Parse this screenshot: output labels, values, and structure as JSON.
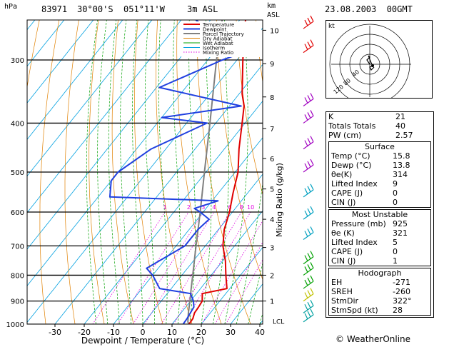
{
  "header": {
    "station": "83971",
    "coords": "30°00'S  051°11'W",
    "elev": "3m ASL",
    "datetime": "23.08.2003  00GMT",
    "hpa_unit": "hPa",
    "km_unit": "km",
    "asl_unit": "ASL"
  },
  "chart_data": {
    "type": "skew-t",
    "xlabel": "Dewpoint / Temperature (°C)",
    "ylabel_left": "hPa",
    "ylabel_right": "Mixing Ratio (g/kg)",
    "pressure_ticks": [
      300,
      400,
      500,
      600,
      700,
      800,
      900,
      1000
    ],
    "temp_ticks": [
      -30,
      -20,
      -10,
      0,
      10,
      20,
      30,
      40
    ],
    "height_ticks_km": [
      "1",
      "2",
      "3",
      "4",
      "5",
      "6",
      "7",
      "8",
      "9",
      "10"
    ],
    "lcl_label": "LCL",
    "mixing_ratio_labels": [
      "1",
      "2",
      "3",
      "4",
      "6",
      "8",
      "10",
      "15",
      "20",
      "25"
    ],
    "legend": [
      "Temperature",
      "Dewpoint",
      "Parcel Trajectory",
      "Dry Adiabat",
      "Wet Adiabat",
      "Isotherm",
      "Mixing Ratio"
    ],
    "colors": {
      "temperature": "#e00000",
      "dewpoint": "#2040e0",
      "parcel": "#808080",
      "dry_adiabat": "#e08000",
      "wet_adiabat": "#00a000",
      "isotherm": "#00a0e0",
      "mixing_ratio": "#e000e0"
    },
    "temperature": [
      {
        "p": 1000,
        "t": 15.8
      },
      {
        "p": 975,
        "t": 15.6
      },
      {
        "p": 950,
        "t": 14.6
      },
      {
        "p": 925,
        "t": 14.4
      },
      {
        "p": 900,
        "t": 14.0
      },
      {
        "p": 870,
        "t": 12.0
      },
      {
        "p": 850,
        "t": 19.0
      },
      {
        "p": 800,
        "t": 15.0
      },
      {
        "p": 750,
        "t": 11.0
      },
      {
        "p": 700,
        "t": 6.0
      },
      {
        "p": 650,
        "t": 2.0
      },
      {
        "p": 600,
        "t": -1.0
      },
      {
        "p": 550,
        "t": -5.0
      },
      {
        "p": 500,
        "t": -9.0
      },
      {
        "p": 450,
        "t": -15.0
      },
      {
        "p": 400,
        "t": -21.0
      },
      {
        "p": 370,
        "t": -25.0
      },
      {
        "p": 350,
        "t": -29.0
      },
      {
        "p": 300,
        "t": -38.0
      },
      {
        "p": 260,
        "t": -46.0
      },
      {
        "p": 250,
        "t": -48.0
      }
    ],
    "dewpoint": [
      {
        "p": 1000,
        "t": 13.8
      },
      {
        "p": 975,
        "t": 13.6
      },
      {
        "p": 950,
        "t": 13.2
      },
      {
        "p": 925,
        "t": 12.8
      },
      {
        "p": 900,
        "t": 11.0
      },
      {
        "p": 870,
        "t": 8.0
      },
      {
        "p": 850,
        "t": -4.0
      },
      {
        "p": 800,
        "t": -10.0
      },
      {
        "p": 775,
        "t": -14.0
      },
      {
        "p": 700,
        "t": -7.0
      },
      {
        "p": 650,
        "t": -7.0
      },
      {
        "p": 620,
        "t": -6.0
      },
      {
        "p": 600,
        "t": -11.0
      },
      {
        "p": 590,
        "t": -14.0
      },
      {
        "p": 570,
        "t": -8.0
      },
      {
        "p": 560,
        "t": -46.0
      },
      {
        "p": 520,
        "t": -50.0
      },
      {
        "p": 500,
        "t": -50.0
      },
      {
        "p": 450,
        "t": -45.0
      },
      {
        "p": 400,
        "t": -33.0
      },
      {
        "p": 390,
        "t": -50.0
      },
      {
        "p": 370,
        "t": -26.0
      },
      {
        "p": 340,
        "t": -59.0
      },
      {
        "p": 300,
        "t": -45.0
      },
      {
        "p": 290,
        "t": -40.0
      },
      {
        "p": 250,
        "t": -65.0
      }
    ],
    "parcel": [
      {
        "p": 1000,
        "t": 15.8
      },
      {
        "p": 990,
        "t": 14.8
      },
      {
        "p": 950,
        "t": 12.5
      },
      {
        "p": 900,
        "t": 9.8
      },
      {
        "p": 850,
        "t": 6.8
      },
      {
        "p": 800,
        "t": 3.7
      },
      {
        "p": 700,
        "t": -3.2
      },
      {
        "p": 600,
        "t": -11.0
      },
      {
        "p": 500,
        "t": -20.5
      },
      {
        "p": 400,
        "t": -32.0
      },
      {
        "p": 300,
        "t": -47.0
      },
      {
        "p": 250,
        "t": -56.0
      }
    ]
  },
  "table": {
    "k_label": "K",
    "k": "21",
    "tt_label": "Totals Totals",
    "tt": "40",
    "pw_label": "PW (cm)",
    "pw": "2.57",
    "surface": {
      "title": "Surface",
      "temp_label": "Temp (°C)",
      "temp": "15.8",
      "dewp_label": "Dewp (°C)",
      "dewp": "13.8",
      "theta_label": "θe(K)",
      "theta": "314",
      "li_label": "Lifted Index",
      "li": "9",
      "cape_label": "CAPE (J)",
      "cape": "0",
      "cin_label": "CIN (J)",
      "cin": "0"
    },
    "unstable": {
      "title": "Most Unstable",
      "p_label": "Pressure (mb)",
      "p": "925",
      "theta_label": "θe (K)",
      "theta": "321",
      "li_label": "Lifted Index",
      "li": "5",
      "cape_label": "CAPE (J)",
      "cape": "0",
      "cin_label": "CIN (J)",
      "cin": "1"
    },
    "hodograph": {
      "title": "Hodograph",
      "eh_label": "EH",
      "eh": "-271",
      "sreh_label": "SREH",
      "sreh": "-260",
      "stmdir_label": "StmDir",
      "stmdir": "322°",
      "stmspd_label": "StmSpd (kt)",
      "stmspd": "28"
    }
  },
  "hodo": {
    "unit": "kt",
    "ring_labels": [
      "40",
      "80",
      "120"
    ]
  },
  "copyright": "© WeatherOnline"
}
